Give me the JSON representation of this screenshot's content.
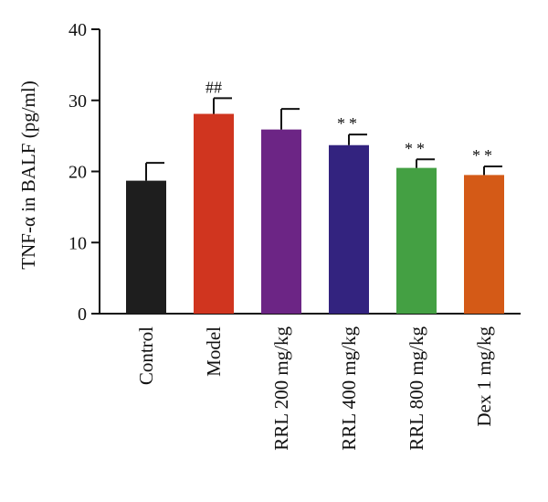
{
  "chart_data": {
    "type": "bar",
    "title": "",
    "xlabel": "",
    "ylabel": "TNF-α in BALF (pg/ml)",
    "ylim": [
      0,
      40
    ],
    "yticks": [
      "0",
      "10",
      "20",
      "30",
      "40"
    ],
    "grid": false,
    "categories": [
      "Control",
      "Model",
      "RRL 200 mg/kg",
      "RRL 400 mg/kg",
      "RRL 800 mg/kg",
      "Dex 1 mg/kg"
    ],
    "values": [
      18.7,
      28.1,
      25.9,
      23.7,
      20.5,
      19.5
    ],
    "error": [
      2.5,
      2.2,
      2.9,
      1.5,
      1.2,
      1.2
    ],
    "annotations": [
      "",
      "##",
      "",
      "**",
      "**",
      "**"
    ],
    "colors": [
      "#1e1e1e",
      "#d0351f",
      "#6c2585",
      "#33237f",
      "#44a043",
      "#d45a17"
    ]
  }
}
